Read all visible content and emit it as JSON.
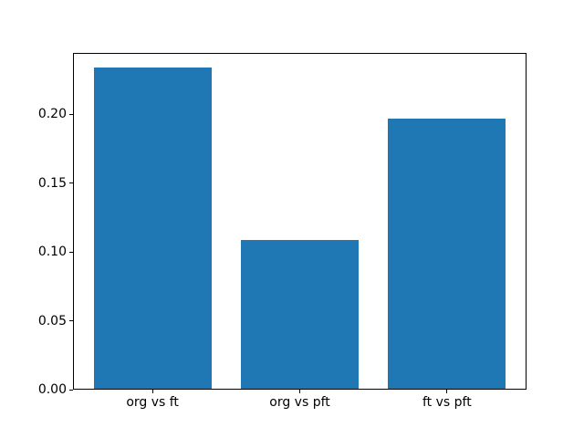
{
  "figure": {
    "background_color": "#ffffff",
    "spine_color": "#000000",
    "text_color": "#000000"
  },
  "chart_data": {
    "type": "bar",
    "title": "",
    "xlabel": "",
    "ylabel": "",
    "categories": [
      "org vs ft",
      "org vs pft",
      "ft vs pft"
    ],
    "values": [
      0.233,
      0.108,
      0.196
    ],
    "bar_color": "#1f77b4",
    "bar_width_fraction": 0.8,
    "ylim": [
      0,
      0.2445
    ],
    "yticks": [
      0,
      0.05,
      0.1,
      0.15,
      0.2
    ],
    "ytick_labels": [
      "0.00",
      "0.05",
      "0.10",
      "0.15",
      "0.20"
    ],
    "grid": false,
    "legend": null
  }
}
